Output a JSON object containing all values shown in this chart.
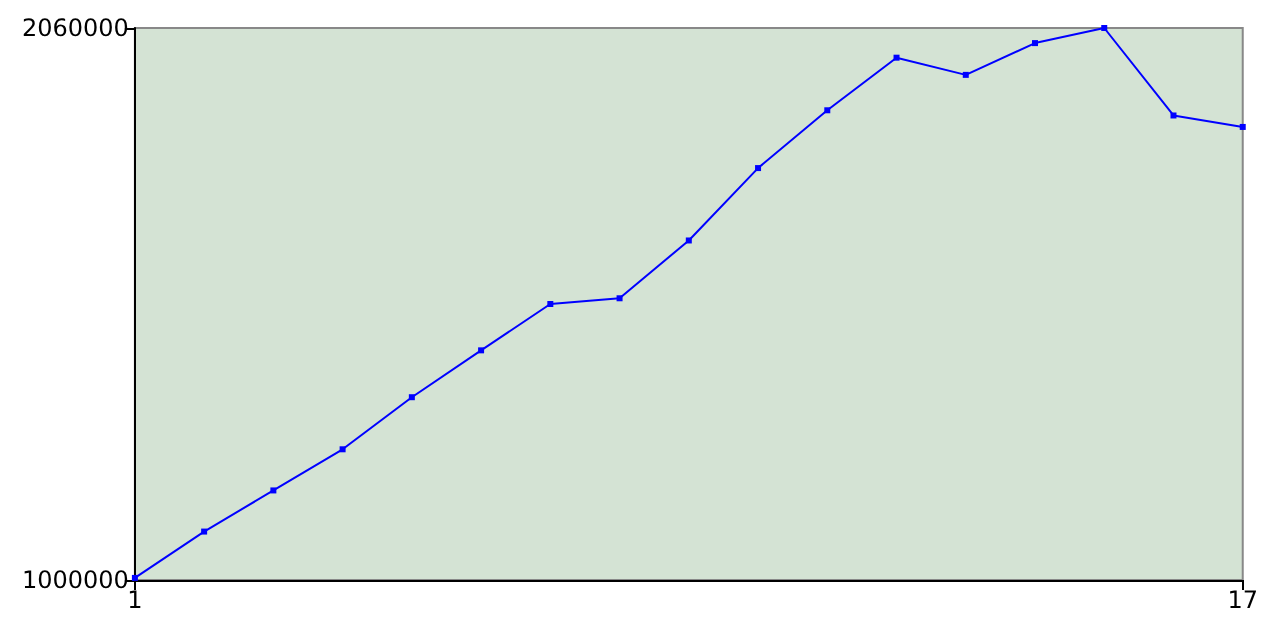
{
  "chart_data": {
    "type": "line",
    "x": [
      1,
      2,
      3,
      4,
      5,
      6,
      7,
      8,
      9,
      10,
      11,
      12,
      13,
      14,
      15,
      16,
      17
    ],
    "series": [
      {
        "color": "#0000ff",
        "values": [
          1004000,
          1093000,
          1172000,
          1251000,
          1351000,
          1441000,
          1530000,
          1541000,
          1652000,
          1791000,
          1902000,
          2003000,
          1970000,
          2031000,
          2060000,
          1892000,
          1870000
        ]
      }
    ],
    "xlim": [
      1,
      17
    ],
    "xticks": [
      1,
      17
    ],
    "ylim": [
      1000000,
      2060000
    ],
    "yticks": [
      1000000,
      2060000
    ],
    "grid": false,
    "marker": "square",
    "line_style": "solid"
  }
}
